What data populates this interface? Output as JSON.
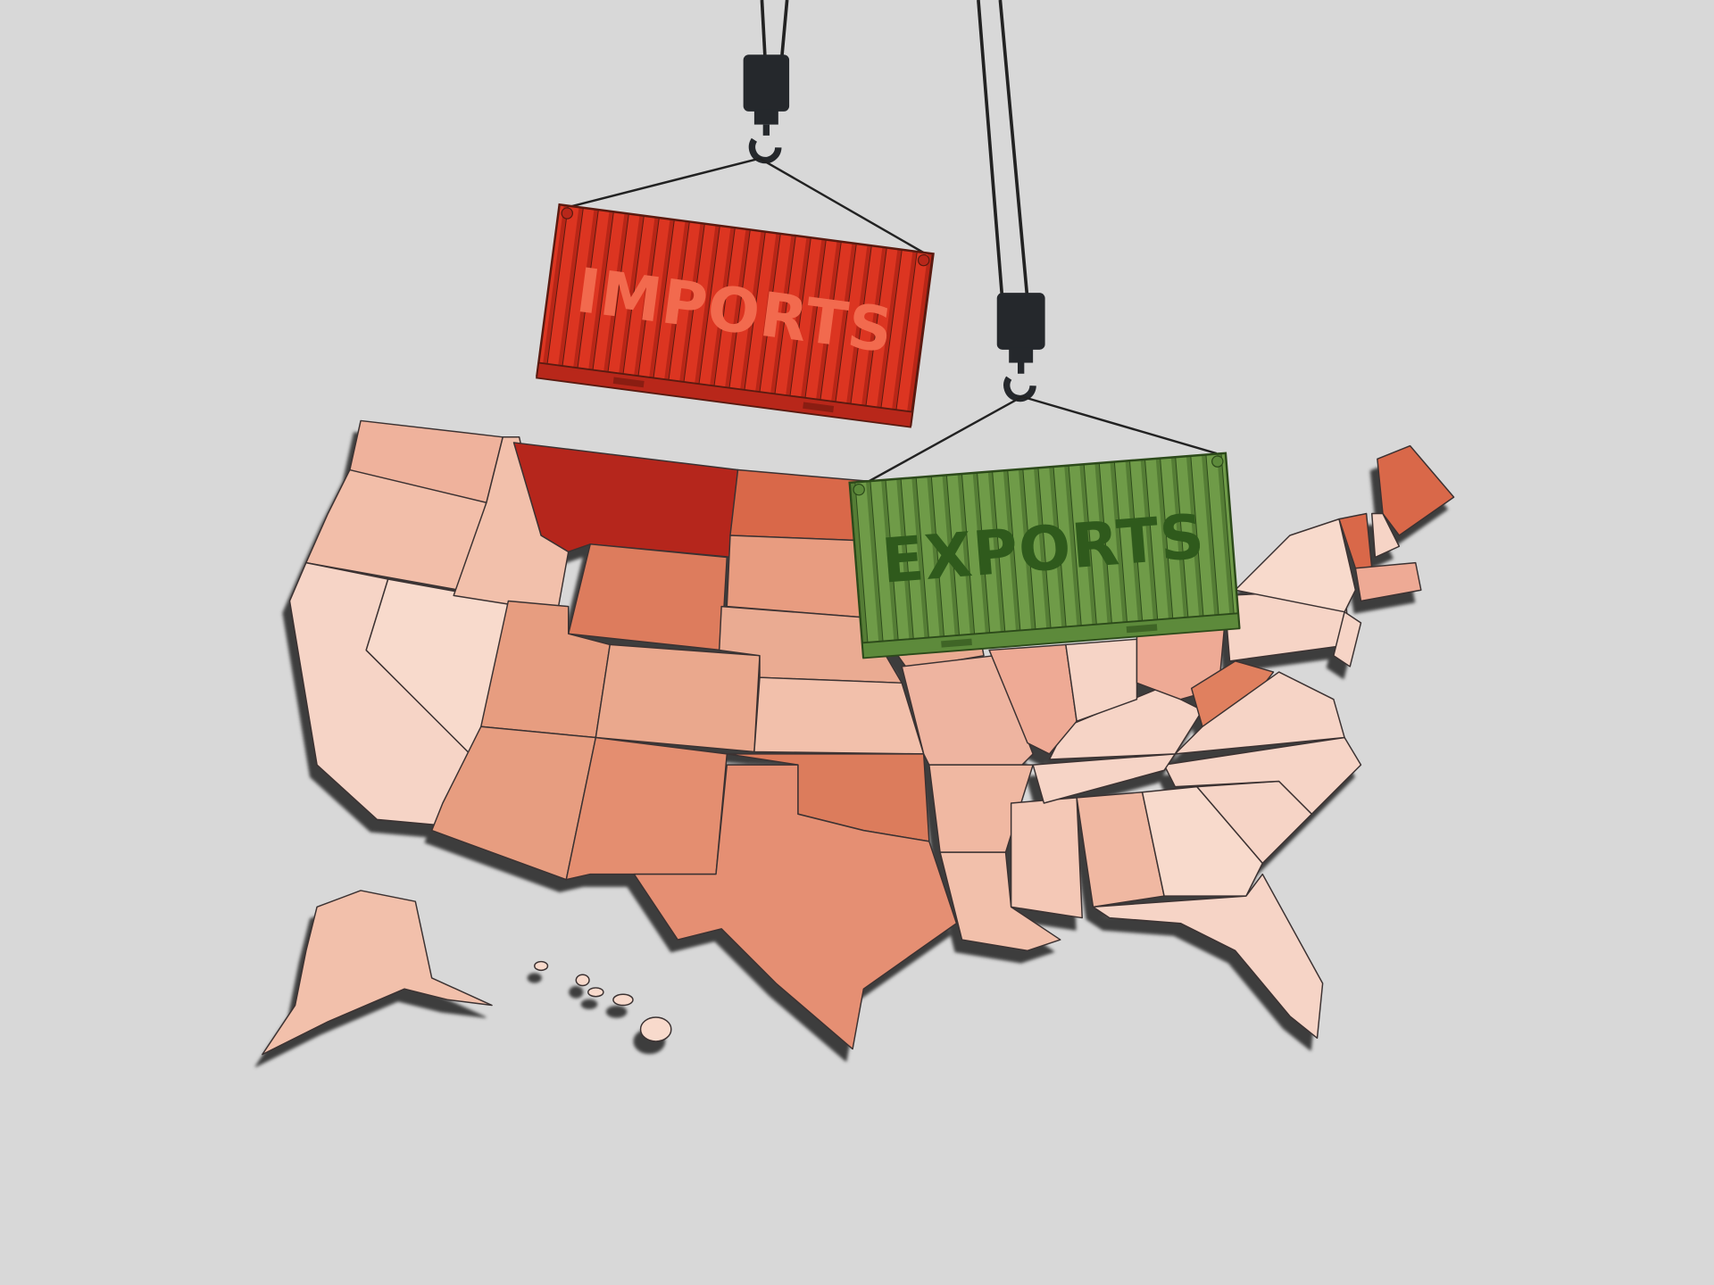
{
  "containers": [
    {
      "label": "IMPORTS"
    },
    {
      "label": "EXPORTS"
    }
  ]
}
